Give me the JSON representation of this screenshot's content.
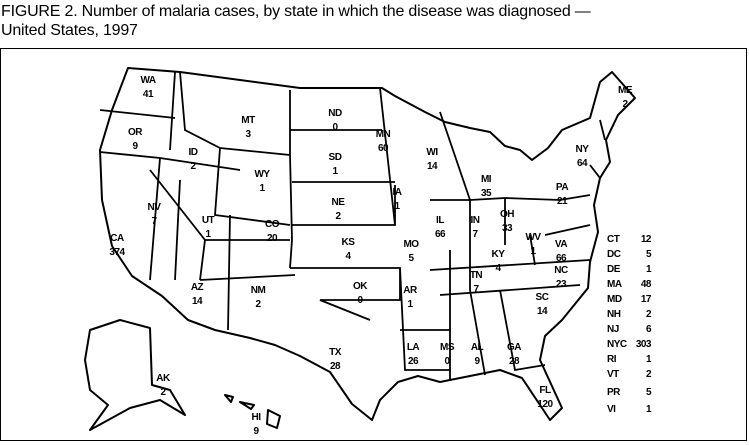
{
  "title": {
    "line1": "FIGURE 2. Number of malaria  cases, by state in which the disease was diagnosed  —",
    "line2": "United States, 1997"
  },
  "map": {
    "type": "choropleth-labels",
    "region": "United States",
    "colors": {
      "stroke": "#000000",
      "fill": "#ffffff"
    },
    "states": [
      {
        "abbr": "WA",
        "value": "41"
      },
      {
        "abbr": "OR",
        "value": "9"
      },
      {
        "abbr": "ID",
        "value": "2"
      },
      {
        "abbr": "MT",
        "value": "3"
      },
      {
        "abbr": "WY",
        "value": "1"
      },
      {
        "abbr": "NV",
        "value": "7"
      },
      {
        "abbr": "UT",
        "value": "1"
      },
      {
        "abbr": "CA",
        "value": "374"
      },
      {
        "abbr": "CO",
        "value": "20"
      },
      {
        "abbr": "AZ",
        "value": "14"
      },
      {
        "abbr": "NM",
        "value": "2"
      },
      {
        "abbr": "ND",
        "value": "0"
      },
      {
        "abbr": "SD",
        "value": "1"
      },
      {
        "abbr": "NE",
        "value": "2"
      },
      {
        "abbr": "KS",
        "value": "4"
      },
      {
        "abbr": "OK",
        "value": "0"
      },
      {
        "abbr": "TX",
        "value": "28"
      },
      {
        "abbr": "MN",
        "value": "60"
      },
      {
        "abbr": "IA",
        "value": "1"
      },
      {
        "abbr": "MO",
        "value": "5"
      },
      {
        "abbr": "AR",
        "value": "1"
      },
      {
        "abbr": "LA",
        "value": "26"
      },
      {
        "abbr": "WI",
        "value": "14"
      },
      {
        "abbr": "IL",
        "value": "66"
      },
      {
        "abbr": "MI",
        "value": "35"
      },
      {
        "abbr": "IN",
        "value": "7"
      },
      {
        "abbr": "OH",
        "value": "33"
      },
      {
        "abbr": "KY",
        "value": "4"
      },
      {
        "abbr": "TN",
        "value": "7"
      },
      {
        "abbr": "MS",
        "value": "0"
      },
      {
        "abbr": "AL",
        "value": "9"
      },
      {
        "abbr": "GA",
        "value": "28"
      },
      {
        "abbr": "FL",
        "value": "120"
      },
      {
        "abbr": "SC",
        "value": "14"
      },
      {
        "abbr": "NC",
        "value": "23"
      },
      {
        "abbr": "VA",
        "value": "66"
      },
      {
        "abbr": "WV",
        "value": "1"
      },
      {
        "abbr": "PA",
        "value": "21"
      },
      {
        "abbr": "NY",
        "value": "64"
      },
      {
        "abbr": "ME",
        "value": "2"
      },
      {
        "abbr": "AK",
        "value": "2"
      },
      {
        "abbr": "HI",
        "value": "9"
      }
    ],
    "side_list": [
      {
        "abbr": "CT",
        "value": "12"
      },
      {
        "abbr": "DC",
        "value": "5"
      },
      {
        "abbr": "DE",
        "value": "1"
      },
      {
        "abbr": "MA",
        "value": "48"
      },
      {
        "abbr": "MD",
        "value": "17"
      },
      {
        "abbr": "NH",
        "value": "2"
      },
      {
        "abbr": "NJ",
        "value": "6"
      },
      {
        "abbr": "NYC",
        "value": "303"
      },
      {
        "abbr": "RI",
        "value": "1"
      },
      {
        "abbr": "VT",
        "value": "2"
      },
      {
        "abbr": "PR",
        "value": "5"
      },
      {
        "abbr": "VI",
        "value": "1"
      }
    ]
  }
}
